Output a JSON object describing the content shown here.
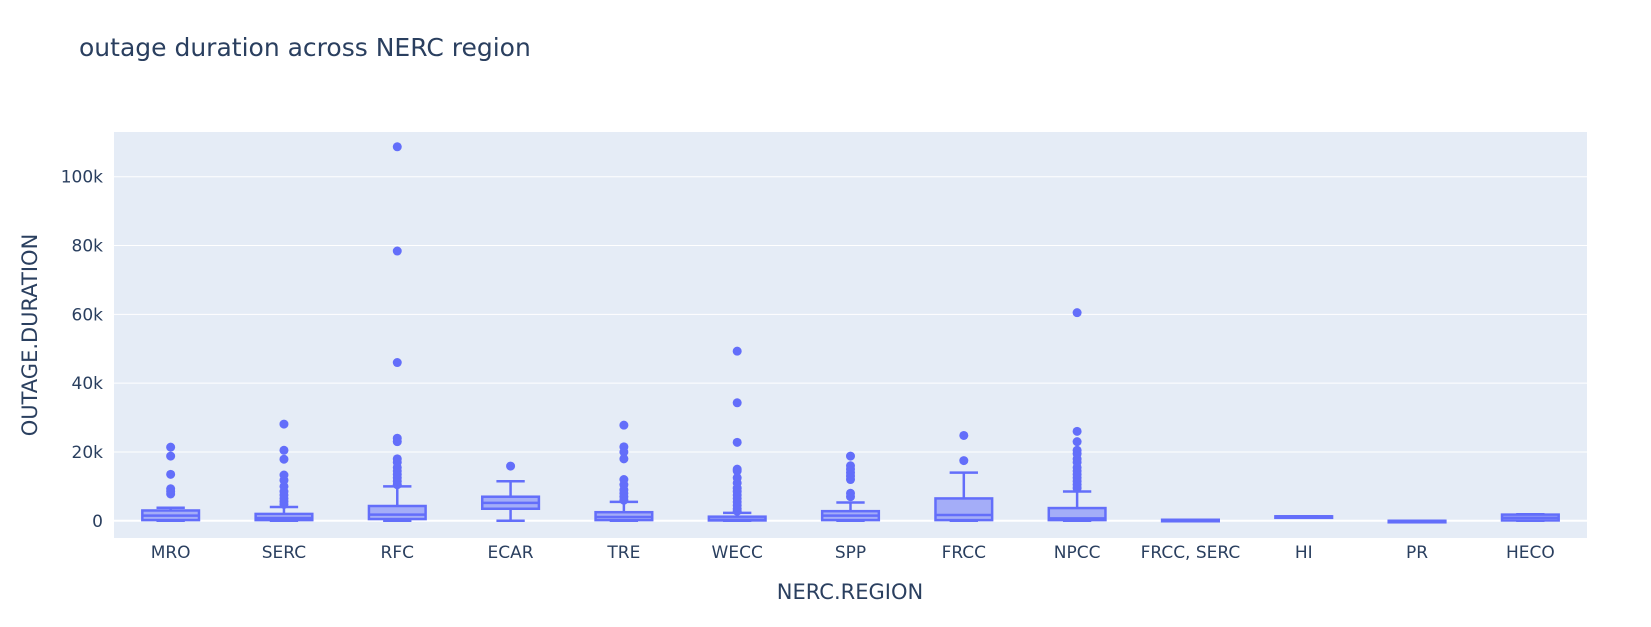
{
  "chart_data": {
    "type": "box",
    "title": "outage duration across NERC region",
    "xlabel": "NERC.REGION",
    "ylabel": "OUTAGE.DURATION",
    "ylim": [
      -5000,
      113000
    ],
    "yticks": [
      0,
      20000,
      40000,
      60000,
      80000,
      100000
    ],
    "ytick_labels": [
      "0",
      "20k",
      "40k",
      "60k",
      "80k",
      "100k"
    ],
    "grid": true,
    "legend": "none",
    "colors": {
      "box": "#636efa",
      "plot_bg": "#e5ecf6",
      "text": "#2a3f5f"
    },
    "categories": [
      "MRO",
      "SERC",
      "RFC",
      "ECAR",
      "TRE",
      "WECC",
      "SPP",
      "FRCC",
      "NPCC",
      "FRCC, SERC",
      "HI",
      "PR",
      "HECO"
    ],
    "boxes": [
      {
        "category": "MRO",
        "lowerfence": 0,
        "q1": 200,
        "median": 1500,
        "q3": 3000,
        "upperfence": 3800,
        "outliers": [
          7800,
          8500,
          9300,
          13500,
          18800,
          21400
        ]
      },
      {
        "category": "SERC",
        "lowerfence": 0,
        "q1": 200,
        "median": 800,
        "q3": 2000,
        "upperfence": 4000,
        "outliers": [
          4800,
          5600,
          6500,
          7500,
          8500,
          10000,
          11800,
          13300,
          17900,
          20500,
          28100
        ]
      },
      {
        "category": "RFC",
        "lowerfence": 0,
        "q1": 500,
        "median": 1800,
        "q3": 4300,
        "upperfence": 10000,
        "outliers": [
          10500,
          11500,
          12500,
          13500,
          14500,
          15500,
          17000,
          18000,
          23000,
          24000,
          46000,
          78400,
          108700
        ]
      },
      {
        "category": "ECAR",
        "lowerfence": 0,
        "q1": 3500,
        "median": 5200,
        "q3": 7000,
        "upperfence": 11500,
        "outliers": [
          15900
        ]
      },
      {
        "category": "TRE",
        "lowerfence": 0,
        "q1": 200,
        "median": 1100,
        "q3": 2500,
        "upperfence": 5500,
        "outliers": [
          6000,
          7000,
          8000,
          9000,
          10500,
          12000,
          18000,
          20000,
          21500,
          27800
        ]
      },
      {
        "category": "WECC",
        "lowerfence": 0,
        "q1": 100,
        "median": 300,
        "q3": 1200,
        "upperfence": 2300,
        "outliers": [
          2800,
          3500,
          4500,
          5500,
          6500,
          7500,
          8500,
          9500,
          11000,
          12500,
          14500,
          15000,
          22800,
          34300,
          49300
        ]
      },
      {
        "category": "SPP",
        "lowerfence": 0,
        "q1": 200,
        "median": 1500,
        "q3": 2800,
        "upperfence": 5300,
        "outliers": [
          7000,
          8000,
          12000,
          13000,
          14000,
          15000,
          16000,
          18800
        ]
      },
      {
        "category": "FRCC",
        "lowerfence": 0,
        "q1": 200,
        "median": 1700,
        "q3": 6500,
        "upperfence": 14000,
        "outliers": [
          17500,
          24800
        ]
      },
      {
        "category": "NPCC",
        "lowerfence": 0,
        "q1": 200,
        "median": 700,
        "q3": 3700,
        "upperfence": 8500,
        "outliers": [
          9500,
          10500,
          11500,
          12500,
          13500,
          14500,
          15500,
          17000,
          18000,
          19500,
          20500,
          23000,
          26000,
          60500
        ]
      },
      {
        "category": "FRCC, SERC",
        "lowerfence": 300,
        "q1": 300,
        "median": 300,
        "q3": 300,
        "upperfence": 300,
        "outliers": []
      },
      {
        "category": "HI",
        "lowerfence": 1300,
        "q1": 1300,
        "median": 1300,
        "q3": 1300,
        "upperfence": 1300,
        "outliers": []
      },
      {
        "category": "PR",
        "lowerfence": 0,
        "q1": 0,
        "median": 0,
        "q3": 0,
        "upperfence": 0,
        "outliers": []
      },
      {
        "category": "HECO",
        "lowerfence": 0,
        "q1": 100,
        "median": 900,
        "q3": 1800,
        "upperfence": 1900,
        "outliers": []
      }
    ]
  }
}
